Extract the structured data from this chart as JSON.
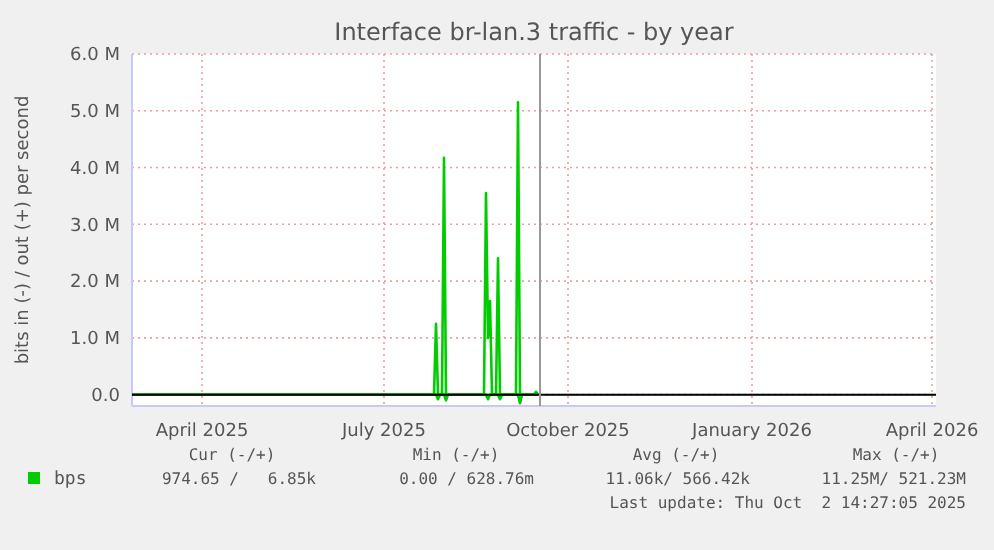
{
  "chart_data": {
    "type": "line",
    "title": "Interface br-lan.3 traffic - by year",
    "ylabel": "bits in (-) / out (+) per second",
    "xlim": [
      "2025-03-12",
      "2026-04-18"
    ],
    "xticks": [
      {
        "value": "2025-04-16",
        "label": "April 2025"
      },
      {
        "value": "2025-07-16",
        "label": "July 2025"
      },
      {
        "value": "2025-10-16",
        "label": "October 2025"
      },
      {
        "value": "2026-01-16",
        "label": "January 2026"
      },
      {
        "value": "2026-04-16",
        "label": "April 2026"
      }
    ],
    "ylim": [
      -0.2,
      6.0
    ],
    "yticks": [
      {
        "value": 0,
        "label": "0.0"
      },
      {
        "value": 1,
        "label": "1.0 M"
      },
      {
        "value": 2,
        "label": "2.0 M"
      },
      {
        "value": 3,
        "label": "3.0 M"
      },
      {
        "value": 4,
        "label": "4.0 M"
      },
      {
        "value": 5,
        "label": "5.0 M"
      },
      {
        "value": 6,
        "label": "6.0 M"
      }
    ],
    "grid": true,
    "legend": "bottom",
    "series": [
      {
        "name": "bps",
        "color": "#00cc00",
        "x": [
          "2025-03-12",
          "2025-08-10",
          "2025-08-11",
          "2025-08-12",
          "2025-08-14",
          "2025-08-15",
          "2025-08-16",
          "2025-09-04",
          "2025-09-05",
          "2025-09-06",
          "2025-09-07",
          "2025-09-08",
          "2025-09-10",
          "2025-09-11",
          "2025-09-12",
          "2025-09-20",
          "2025-09-21",
          "2025-09-22",
          "2025-09-29",
          "2025-09-30",
          "2025-10-01"
        ],
        "values": [
          0,
          0,
          1.25,
          0,
          0,
          4.17,
          0,
          0,
          3.55,
          1.0,
          1.65,
          0,
          0,
          2.4,
          0,
          0,
          5.15,
          0,
          0,
          0.05,
          0
        ]
      },
      {
        "color": "#00cc00",
        "x": [
          "2025-03-12",
          "2025-08-11",
          "2025-08-12",
          "2025-08-13",
          "2025-08-15",
          "2025-08-16",
          "2025-08-17",
          "2025-09-05",
          "2025-09-06",
          "2025-09-07",
          "2025-09-11",
          "2025-09-12",
          "2025-09-13",
          "2025-09-21",
          "2025-09-22",
          "2025-09-23",
          "2025-10-01"
        ],
        "values": [
          0,
          0,
          -0.08,
          0,
          0,
          -0.1,
          0,
          0,
          -0.08,
          0,
          0,
          -0.08,
          0,
          0,
          -0.15,
          0,
          0
        ]
      }
    ],
    "ref_lines": [
      {
        "axis": "y",
        "value": 0,
        "color": "#000000"
      },
      {
        "axis": "x",
        "value": "2025-10-02",
        "color": "#999999"
      }
    ],
    "annotations": [
      "Cur (-/+)",
      "Min (-/+)",
      "Avg (-/+)",
      "Max (-/+)",
      "974.65 /   6.85k",
      "0.00 / 628.76m",
      "11.06k/ 566.42k",
      "11.25M/ 521.23M",
      "Last update: Thu Oct  2 14:27:05 2025"
    ]
  }
}
